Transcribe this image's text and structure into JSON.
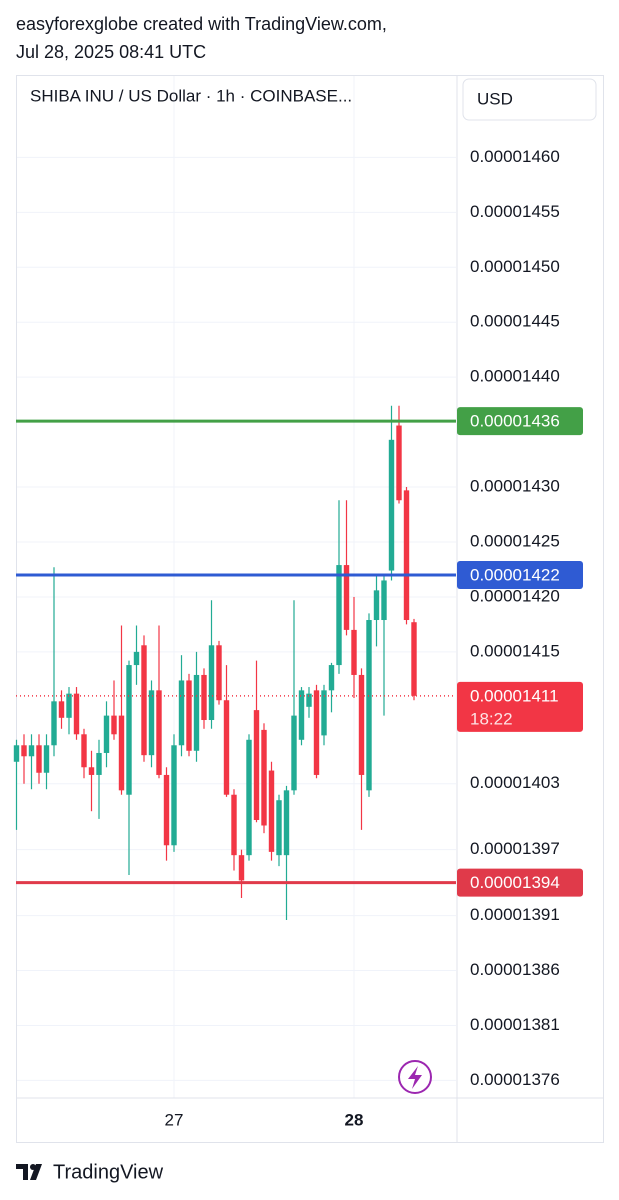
{
  "header": {
    "line1": "easyforexglobe created with TradingView.com,",
    "line2": "Jul 28, 2025 08:41 UTC"
  },
  "footer": "TradingView",
  "chart_data": {
    "type": "candlestick",
    "title": "SHIBA INU / US Dollar · 1h · COINBASE...",
    "currency": "USD",
    "up_color": "#22ab94",
    "down_color": "#f23645",
    "categories": [
      null,
      null,
      null,
      null,
      null,
      null,
      null,
      null,
      null,
      null,
      null,
      null,
      null,
      null,
      null,
      null,
      null,
      null,
      null,
      null,
      null,
      "27",
      null,
      null,
      null,
      null,
      null,
      null,
      null,
      null,
      null,
      null,
      null,
      null,
      null,
      null,
      null,
      null,
      null,
      null,
      null,
      null,
      null,
      null,
      null,
      "28",
      null,
      null,
      null,
      null,
      null,
      null,
      null,
      null
    ],
    "open": [
      1.405e-05,
      1.4065e-05,
      1.4055e-05,
      1.4065e-05,
      1.404e-05,
      1.4065e-05,
      1.4105e-05,
      1.409e-05,
      1.4112e-05,
      1.4075e-05,
      1.4045e-05,
      1.4038e-05,
      1.4058e-05,
      1.4092e-05,
      1.4092e-05,
      1.402e-05,
      1.4138e-05,
      1.4156e-05,
      1.4056e-05,
      1.4115e-05,
      1.4038e-05,
      1.3974e-05,
      1.4065e-05,
      1.4124e-05,
      1.406e-05,
      1.4129e-05,
      1.4088e-05,
      1.4156e-05,
      1.4106e-05,
      1.402e-05,
      1.3965e-05,
      1.3965e-05,
      1.4097e-05,
      1.4079e-05,
      1.4042e-05,
      1.3965e-05,
      1.3965e-05,
      1.4024e-05,
      1.407e-05,
      1.41e-05,
      1.4115e-05,
      1.4074e-05,
      1.4115e-05,
      1.4138e-05,
      1.4229e-05,
      1.417e-05,
      1.4129e-05,
      1.4024e-05,
      1.4179e-05,
      1.4179e-05,
      1.4224e-05,
      1.4356e-05,
      1.4297e-05,
      1.4177e-05
    ],
    "high": [
      1.407e-05,
      1.4075e-05,
      1.4075e-05,
      1.4075e-05,
      1.4075e-05,
      1.4227e-05,
      1.4115e-05,
      1.4118e-05,
      1.4118e-05,
      1.408e-05,
      1.406e-05,
      1.407e-05,
      1.4105e-05,
      1.4124e-05,
      1.4174e-05,
      1.4142e-05,
      1.4174e-05,
      1.4165e-05,
      1.4124e-05,
      1.4174e-05,
      1.4045e-05,
      1.4075e-05,
      1.4147e-05,
      1.413e-05,
      1.415e-05,
      1.4135e-05,
      1.4197e-05,
      1.416e-05,
      1.4138e-05,
      1.4025e-05,
      1.397e-05,
      1.4075e-05,
      1.4142e-05,
      1.4085e-05,
      1.405e-05,
      1.402e-05,
      1.4028e-05,
      1.4197e-05,
      1.4118e-05,
      1.4118e-05,
      1.412e-05,
      1.412e-05,
      1.414e-05,
      1.4288e-05,
      1.4288e-05,
      1.42e-05,
      1.4135e-05,
      1.4185e-05,
      1.422e-05,
      1.422e-05,
      1.4374e-05,
      1.4374e-05,
      1.43e-05,
      1.418e-05
    ],
    "low": [
      1.3988e-05,
      1.403e-05,
      1.4025e-05,
      1.403e-05,
      1.4025e-05,
      1.4055e-05,
      1.408e-05,
      1.4075e-05,
      1.407e-05,
      1.4035e-05,
      1.4005e-05,
      1.3998e-05,
      1.4045e-05,
      1.407e-05,
      1.402e-05,
      1.3947e-05,
      1.412e-05,
      1.405e-05,
      1.4045e-05,
      1.4035e-05,
      1.396e-05,
      1.3968e-05,
      1.4055e-05,
      1.4055e-05,
      1.405e-05,
      1.408e-05,
      1.408e-05,
      1.4102e-05,
      1.4018e-05,
      1.3951e-05,
      1.3926e-05,
      1.396e-05,
      1.3995e-05,
      1.3985e-05,
      1.396e-05,
      1.3955e-05,
      1.3906e-05,
      1.402e-05,
      1.4065e-05,
      1.409e-05,
      1.4035e-05,
      1.4065e-05,
      1.4095e-05,
      1.413e-05,
      1.4165e-05,
      1.4108e-05,
      1.3988e-05,
      1.4018e-05,
      1.4155e-05,
      1.4092e-05,
      1.4215e-05,
      1.4285e-05,
      1.4175e-05,
      1.4106e-05
    ],
    "close": [
      1.4065e-05,
      1.4055e-05,
      1.4065e-05,
      1.404e-05,
      1.4065e-05,
      1.4105e-05,
      1.409e-05,
      1.4112e-05,
      1.4075e-05,
      1.4045e-05,
      1.4038e-05,
      1.4058e-05,
      1.4092e-05,
      1.4075e-05,
      1.4024e-05,
      1.4138e-05,
      1.415e-05,
      1.4056e-05,
      1.4115e-05,
      1.4038e-05,
      1.3974e-05,
      1.4065e-05,
      1.4124e-05,
      1.406e-05,
      1.4129e-05,
      1.4088e-05,
      1.4156e-05,
      1.4106e-05,
      1.402e-05,
      1.3965e-05,
      1.3942e-05,
      1.407e-05,
      1.3997e-05,
      1.3992e-05,
      1.3968e-05,
      1.4015e-05,
      1.4024e-05,
      1.4092e-05,
      1.4115e-05,
      1.4112e-05,
      1.4038e-05,
      1.4115e-05,
      1.4138e-05,
      1.4229e-05,
      1.417e-05,
      1.4129e-05,
      1.4038e-05,
      1.4179e-05,
      1.4206e-05,
      1.4215e-05,
      1.4343e-05,
      1.4288e-05,
      1.4179e-05,
      1.411e-05
    ],
    "last_price_label": "0.00001411",
    "countdown": "18:22",
    "levels": [
      {
        "value": 1.436e-05,
        "label": "0.00001436",
        "color": "#43a047"
      },
      {
        "value": 1.422e-05,
        "label": "0.00001422",
        "color": "#2f5bd3"
      },
      {
        "value": 1.394e-05,
        "label": "0.00001394",
        "color": "#e03a4a"
      }
    ],
    "ylim": [
      1.3744e-05,
      1.4675e-05
    ],
    "yticks": [
      {
        "value": 1.46e-05,
        "label": "0.00001460"
      },
      {
        "value": 1.455e-05,
        "label": "0.00001455"
      },
      {
        "value": 1.45e-05,
        "label": "0.00001450"
      },
      {
        "value": 1.445e-05,
        "label": "0.00001445"
      },
      {
        "value": 1.44e-05,
        "label": "0.00001440"
      },
      {
        "value": 1.43e-05,
        "label": "0.00001430"
      },
      {
        "value": 1.425e-05,
        "label": "0.00001425"
      },
      {
        "value": 1.42e-05,
        "label": "0.00001420"
      },
      {
        "value": 1.415e-05,
        "label": "0.00001415"
      },
      {
        "value": 1.403e-05,
        "label": "0.00001403"
      },
      {
        "value": 1.397e-05,
        "label": "0.00001397"
      },
      {
        "value": 1.391e-05,
        "label": "0.00001391"
      },
      {
        "value": 1.386e-05,
        "label": "0.00001386"
      },
      {
        "value": 1.381e-05,
        "label": "0.00001381"
      },
      {
        "value": 1.376e-05,
        "label": "0.00001376"
      }
    ],
    "grid": true
  }
}
